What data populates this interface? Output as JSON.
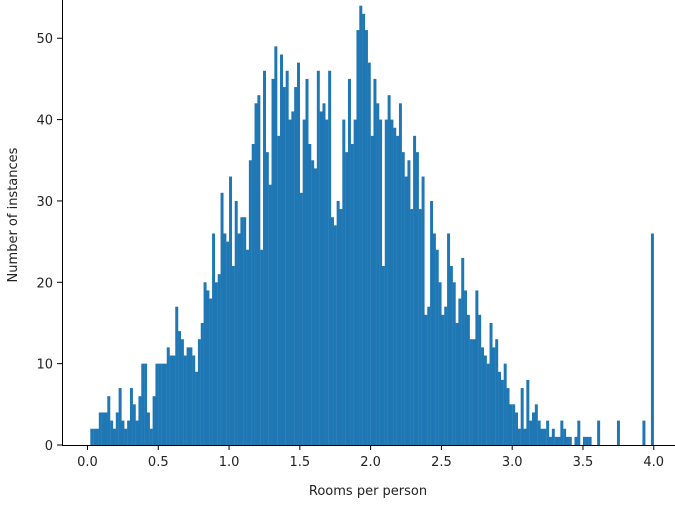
{
  "chart_data": {
    "type": "bar",
    "subtype": "histogram",
    "xlabel": "Rooms per person",
    "ylabel": "Number of instances",
    "xlim": [
      -0.18,
      4.15
    ],
    "ylim": [
      0,
      54.7
    ],
    "xticks": [
      "0.0",
      "0.5",
      "1.0",
      "1.5",
      "2.0",
      "2.5",
      "3.0",
      "3.5",
      "4.0"
    ],
    "yticks": [
      "0",
      "10",
      "20",
      "30",
      "40",
      "50"
    ],
    "grid": false,
    "bar_color": "#1f77b4",
    "bin_start": 0.02,
    "bin_width": 0.02,
    "values": [
      2,
      2,
      2,
      4,
      4,
      4,
      6,
      3,
      2,
      4,
      7,
      3,
      2,
      3,
      7,
      5,
      3,
      6,
      10,
      10,
      4,
      2,
      6,
      10,
      10,
      10,
      10,
      12,
      11,
      11,
      17,
      14,
      13,
      11,
      12,
      12,
      11,
      9,
      13,
      15,
      20,
      19,
      18,
      26,
      20,
      21,
      31,
      26,
      25,
      33,
      22,
      30,
      26,
      28,
      28,
      24,
      35,
      37,
      42,
      43,
      24,
      46,
      36,
      32,
      45,
      49,
      38,
      48,
      44,
      46,
      40,
      41,
      44,
      47,
      31,
      40,
      45,
      37,
      35,
      34,
      46,
      41,
      42,
      40,
      46,
      28,
      27,
      30,
      29,
      40,
      36,
      45,
      37,
      40,
      51,
      54,
      53,
      51,
      47,
      38,
      45,
      42,
      40,
      22,
      40,
      43,
      40,
      39,
      38,
      42,
      36,
      33,
      35,
      29,
      38,
      36,
      29,
      33,
      16,
      17,
      30,
      26,
      24,
      20,
      16,
      17,
      26,
      22,
      20,
      15,
      18,
      23,
      19,
      16,
      13,
      13,
      19,
      16,
      12,
      11,
      10,
      15,
      12,
      13,
      9,
      8,
      10,
      7,
      5,
      5,
      4,
      2,
      7,
      2,
      8,
      3,
      4,
      5,
      3,
      2,
      2,
      3,
      1,
      2,
      1,
      1,
      3,
      2,
      1,
      1,
      0,
      1,
      3,
      0,
      1,
      1,
      1,
      0,
      0,
      3,
      0,
      0,
      0,
      0,
      0,
      0,
      3,
      0,
      0,
      0,
      0,
      0,
      0,
      0,
      0,
      3,
      0,
      0,
      26
    ]
  }
}
